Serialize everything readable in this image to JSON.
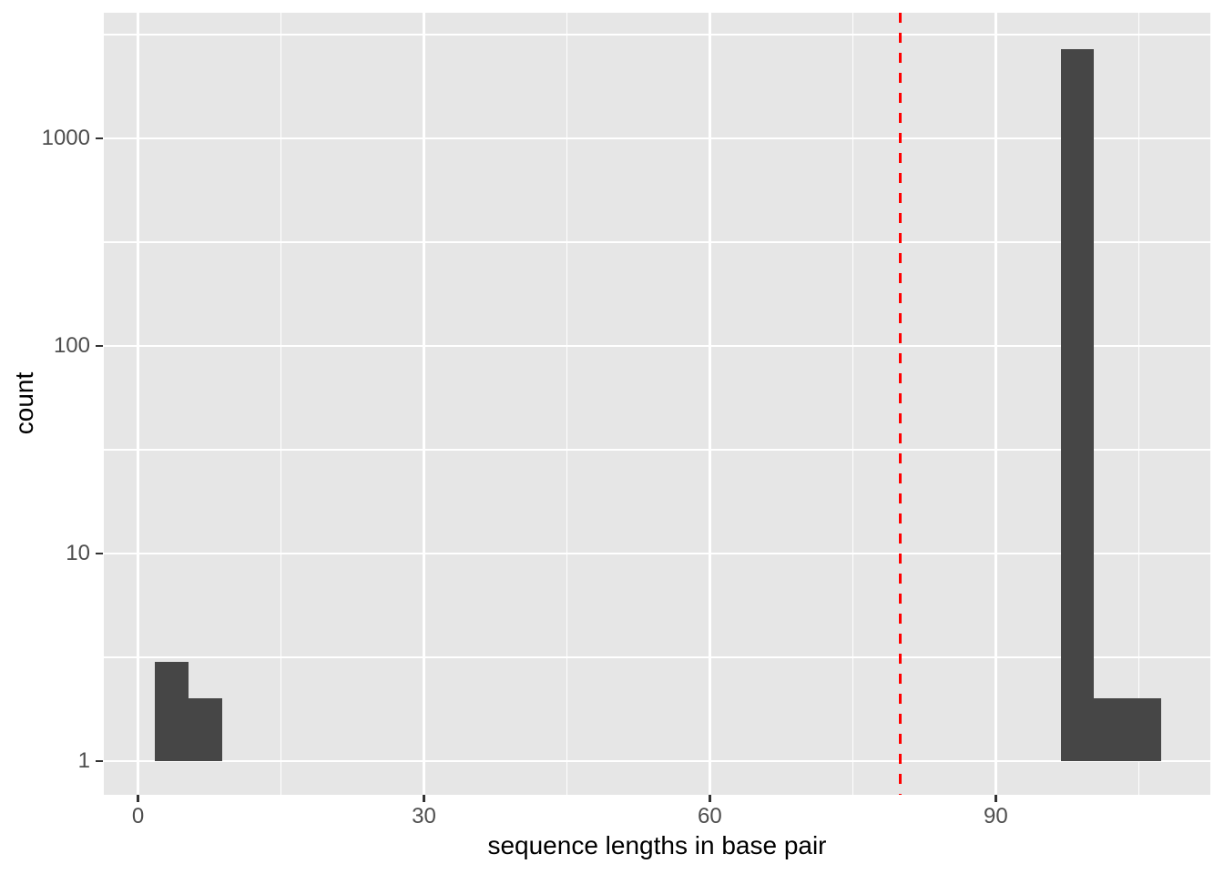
{
  "chart_data": {
    "type": "histogram",
    "title": "",
    "xlabel": "sequence lengths in base pair",
    "ylabel": "count",
    "y_scale": "log10",
    "grid": true,
    "legend": "none",
    "binwidth": 3.52,
    "bins": [
      {
        "x0": 1.76,
        "x1": 5.28,
        "center": 3.5,
        "count": 3
      },
      {
        "x0": 5.28,
        "x1": 8.8,
        "center": 7,
        "count": 2
      },
      {
        "x0": 96.8,
        "x1": 100.32,
        "center": 98.5,
        "count": 2700
      },
      {
        "x0": 100.32,
        "x1": 103.84,
        "center": 102,
        "count": 2
      },
      {
        "x0": 103.84,
        "x1": 107.36,
        "center": 105.5,
        "count": 2
      }
    ],
    "vline": {
      "x": 80,
      "color": "#FF0000",
      "style": "dashed"
    },
    "x_ticks": [
      0,
      30,
      60,
      90
    ],
    "x_minor": [
      15,
      45,
      75,
      105
    ],
    "y_ticks": [
      {
        "value": 1,
        "label": "1"
      },
      {
        "value": 10,
        "label": "10"
      },
      {
        "value": 100,
        "label": "100"
      },
      {
        "value": 1000,
        "label": "1000"
      }
    ],
    "y_minor": [
      3.1623,
      31.623,
      316.23,
      3162.3
    ],
    "xlim": [
      -3.59,
      112.52
    ],
    "ylim_log10": [
      -0.162,
      3.605
    ],
    "colors": {
      "page_bg": "#FFFFFF",
      "panel_bg": "#E6E6E6",
      "grid": "#FFFFFF",
      "bar_fill": "#464646",
      "tick_mark": "#333333",
      "tick_label": "#4D4D4D",
      "axis_title": "#000000",
      "vline": "#FF0000"
    }
  }
}
